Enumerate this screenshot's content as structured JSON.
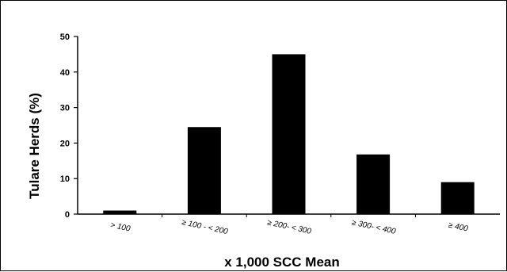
{
  "chart_data": {
    "type": "bar",
    "categories": [
      "> 100",
      "≥ 100 - < 200",
      "≥ 200- < 300",
      "≥ 300- < 400",
      "≥ 400"
    ],
    "values": [
      1,
      24.5,
      45,
      16.8,
      9
    ],
    "ylabel": "Tulare Herds (%)",
    "xlabel": "x 1,000 SCC Mean",
    "ylim": [
      0,
      50
    ],
    "yticks": [
      0,
      10,
      20,
      30,
      40,
      50
    ],
    "grid": false,
    "bar_color": "#000000"
  }
}
